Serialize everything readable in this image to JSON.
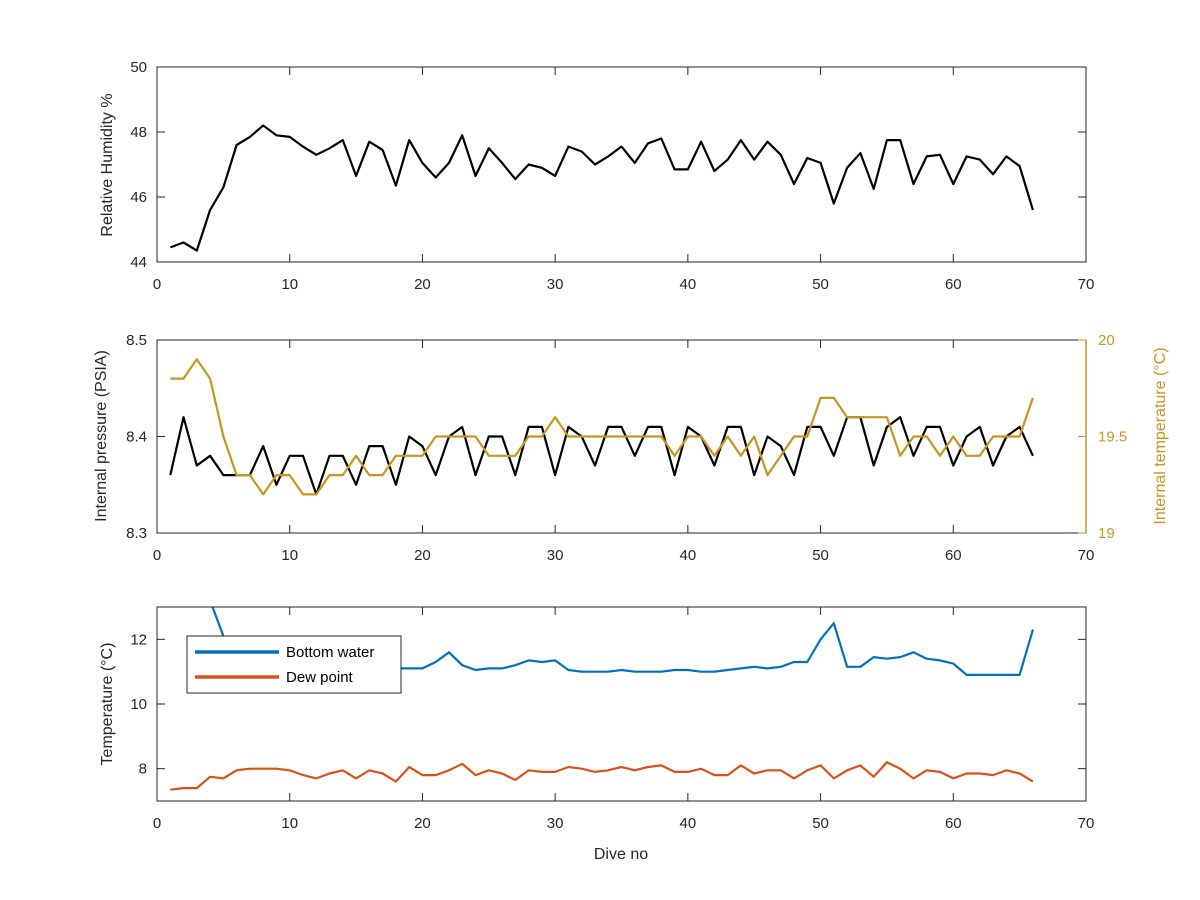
{
  "chart_data": [
    {
      "type": "line",
      "ylabel": "Relative Humidity %",
      "xlim": [
        0,
        70
      ],
      "ylim": [
        44,
        50
      ],
      "xticks": [
        "0",
        "10",
        "20",
        "30",
        "40",
        "50",
        "60",
        "70"
      ],
      "yticks": [
        "44",
        "46",
        "48",
        "50"
      ],
      "grid": false,
      "series": [
        {
          "color": "#000000",
          "x": [
            1,
            2,
            3,
            4,
            5,
            6,
            7,
            8,
            9,
            10,
            11,
            12,
            13,
            14,
            15,
            16,
            17,
            18,
            19,
            20,
            21,
            22,
            23,
            24,
            25,
            26,
            27,
            28,
            29,
            30,
            31,
            32,
            33,
            34,
            35,
            36,
            37,
            38,
            39,
            40,
            41,
            42,
            43,
            44,
            45,
            46,
            47,
            48,
            49,
            50,
            51,
            52,
            53,
            54,
            55,
            56,
            57,
            58,
            59,
            60,
            61,
            62,
            63,
            64,
            65,
            66
          ],
          "values": [
            44.45,
            44.6,
            44.35,
            45.6,
            46.3,
            47.6,
            47.85,
            48.2,
            47.9,
            47.85,
            47.55,
            47.3,
            47.5,
            47.75,
            46.65,
            47.7,
            47.45,
            46.35,
            47.75,
            47.05,
            46.6,
            47.05,
            47.9,
            46.65,
            47.5,
            47.05,
            46.55,
            47.0,
            46.9,
            46.65,
            47.55,
            47.4,
            47.0,
            47.25,
            47.55,
            47.05,
            47.65,
            47.8,
            46.85,
            46.85,
            47.7,
            46.8,
            47.15,
            47.75,
            47.15,
            47.7,
            47.3,
            46.4,
            47.2,
            47.05,
            45.8,
            46.9,
            47.35,
            46.25,
            47.75,
            47.75,
            46.4,
            47.25,
            47.3,
            46.4,
            47.25,
            47.15,
            46.7,
            47.25,
            46.95,
            45.6
          ]
        }
      ]
    },
    {
      "type": "line",
      "ylabel": "Internal pressure (PSIA)",
      "y2label": "Internal temperature (°C)",
      "xlim": [
        0,
        70
      ],
      "ylim": [
        8.3,
        8.5
      ],
      "y2lim": [
        19,
        20
      ],
      "xticks": [
        "0",
        "10",
        "20",
        "30",
        "40",
        "50",
        "60",
        "70"
      ],
      "yticks": [
        "8.3",
        "8.4",
        "8.5"
      ],
      "y2ticks": [
        "19",
        "19.5",
        "20"
      ],
      "grid": false,
      "series": [
        {
          "axis": "left",
          "color": "#000000",
          "x": [
            1,
            2,
            3,
            4,
            5,
            6,
            7,
            8,
            9,
            10,
            11,
            12,
            13,
            14,
            15,
            16,
            17,
            18,
            19,
            20,
            21,
            22,
            23,
            24,
            25,
            26,
            27,
            28,
            29,
            30,
            31,
            32,
            33,
            34,
            35,
            36,
            37,
            38,
            39,
            40,
            41,
            42,
            43,
            44,
            45,
            46,
            47,
            48,
            49,
            50,
            51,
            52,
            53,
            54,
            55,
            56,
            57,
            58,
            59,
            60,
            61,
            62,
            63,
            64,
            65,
            66
          ],
          "values": [
            8.36,
            8.42,
            8.37,
            8.38,
            8.36,
            8.36,
            8.36,
            8.39,
            8.35,
            8.38,
            8.38,
            8.34,
            8.38,
            8.38,
            8.35,
            8.39,
            8.39,
            8.35,
            8.4,
            8.39,
            8.36,
            8.4,
            8.41,
            8.36,
            8.4,
            8.4,
            8.36,
            8.41,
            8.41,
            8.36,
            8.41,
            8.4,
            8.37,
            8.41,
            8.41,
            8.38,
            8.41,
            8.41,
            8.36,
            8.41,
            8.4,
            8.37,
            8.41,
            8.41,
            8.36,
            8.4,
            8.39,
            8.36,
            8.41,
            8.41,
            8.38,
            8.42,
            8.42,
            8.37,
            8.41,
            8.42,
            8.38,
            8.41,
            8.41,
            8.37,
            8.4,
            8.41,
            8.37,
            8.4,
            8.41,
            8.38
          ]
        },
        {
          "axis": "right",
          "color": "#C8961E",
          "x": [
            1,
            2,
            3,
            4,
            5,
            6,
            7,
            8,
            9,
            10,
            11,
            12,
            13,
            14,
            15,
            16,
            17,
            18,
            19,
            20,
            21,
            22,
            23,
            24,
            25,
            26,
            27,
            28,
            29,
            30,
            31,
            32,
            33,
            34,
            35,
            36,
            37,
            38,
            39,
            40,
            41,
            42,
            43,
            44,
            45,
            46,
            47,
            48,
            49,
            50,
            51,
            52,
            53,
            54,
            55,
            56,
            57,
            58,
            59,
            60,
            61,
            62,
            63,
            64,
            65,
            66
          ],
          "values": [
            19.8,
            19.8,
            19.9,
            19.8,
            19.5,
            19.3,
            19.3,
            19.2,
            19.3,
            19.3,
            19.2,
            19.2,
            19.3,
            19.3,
            19.4,
            19.3,
            19.3,
            19.4,
            19.4,
            19.4,
            19.5,
            19.5,
            19.5,
            19.5,
            19.4,
            19.4,
            19.4,
            19.5,
            19.5,
            19.6,
            19.5,
            19.5,
            19.5,
            19.5,
            19.5,
            19.5,
            19.5,
            19.5,
            19.4,
            19.5,
            19.5,
            19.4,
            19.5,
            19.4,
            19.5,
            19.3,
            19.4,
            19.5,
            19.5,
            19.7,
            19.7,
            19.6,
            19.6,
            19.6,
            19.6,
            19.4,
            19.5,
            19.5,
            19.4,
            19.5,
            19.4,
            19.4,
            19.5,
            19.5,
            19.5,
            19.7
          ]
        }
      ]
    },
    {
      "type": "line",
      "xlabel": "Dive no",
      "ylabel": "Temperature (°C)",
      "xlim": [
        0,
        70
      ],
      "ylim": [
        7,
        13
      ],
      "xticks": [
        "0",
        "10",
        "20",
        "30",
        "40",
        "50",
        "60",
        "70"
      ],
      "yticks": [
        "8",
        "10",
        "12"
      ],
      "grid": false,
      "legend": "top-left",
      "series": [
        {
          "name": "Bottom water",
          "color": "#0072BD",
          "x": [
            4,
            5,
            6,
            7,
            8,
            9,
            10,
            11,
            12,
            13,
            14,
            15,
            16,
            17,
            18,
            19,
            20,
            21,
            22,
            23,
            24,
            25,
            26,
            27,
            28,
            29,
            30,
            31,
            32,
            33,
            34,
            35,
            36,
            37,
            38,
            39,
            40,
            41,
            42,
            43,
            44,
            45,
            46,
            47,
            48,
            49,
            50,
            51,
            52,
            53,
            54,
            55,
            56,
            57,
            58,
            59,
            60,
            61,
            62,
            63,
            64,
            65,
            66
          ],
          "values": [
            13.2,
            12.1,
            11.8,
            11.4,
            11.2,
            11.1,
            11.1,
            11.1,
            11.1,
            11.1,
            11.1,
            11.1,
            11.1,
            11.1,
            11.1,
            11.1,
            11.1,
            11.3,
            11.6,
            11.2,
            11.05,
            11.1,
            11.1,
            11.2,
            11.35,
            11.3,
            11.35,
            11.05,
            11.0,
            11.0,
            11.0,
            11.05,
            11.0,
            11.0,
            11.0,
            11.05,
            11.05,
            11.0,
            11.0,
            11.05,
            11.1,
            11.15,
            11.1,
            11.15,
            11.3,
            11.3,
            12.0,
            12.5,
            11.15,
            11.15,
            11.45,
            11.4,
            11.45,
            11.6,
            11.4,
            11.35,
            11.25,
            10.9,
            10.9,
            10.9,
            10.9,
            10.9,
            12.3
          ]
        },
        {
          "name": "Dew point",
          "color": "#D95319",
          "x": [
            1,
            2,
            3,
            4,
            5,
            6,
            7,
            8,
            9,
            10,
            11,
            12,
            13,
            14,
            15,
            16,
            17,
            18,
            19,
            20,
            21,
            22,
            23,
            24,
            25,
            26,
            27,
            28,
            29,
            30,
            31,
            32,
            33,
            34,
            35,
            36,
            37,
            38,
            39,
            40,
            41,
            42,
            43,
            44,
            45,
            46,
            47,
            48,
            49,
            50,
            51,
            52,
            53,
            54,
            55,
            56,
            57,
            58,
            59,
            60,
            61,
            62,
            63,
            64,
            65,
            66
          ],
          "values": [
            7.35,
            7.4,
            7.4,
            7.75,
            7.7,
            7.95,
            8.0,
            8.0,
            8.0,
            7.95,
            7.8,
            7.7,
            7.85,
            7.95,
            7.7,
            7.95,
            7.85,
            7.6,
            8.05,
            7.8,
            7.8,
            7.95,
            8.15,
            7.8,
            7.95,
            7.85,
            7.65,
            7.95,
            7.9,
            7.9,
            8.05,
            8.0,
            7.9,
            7.95,
            8.05,
            7.95,
            8.05,
            8.1,
            7.9,
            7.9,
            8.0,
            7.8,
            7.8,
            8.1,
            7.85,
            7.95,
            7.95,
            7.7,
            7.95,
            8.1,
            7.7,
            7.95,
            8.1,
            7.75,
            8.2,
            8.0,
            7.7,
            7.95,
            7.9,
            7.7,
            7.85,
            7.85,
            7.8,
            7.95,
            7.85,
            7.6
          ]
        }
      ]
    }
  ]
}
